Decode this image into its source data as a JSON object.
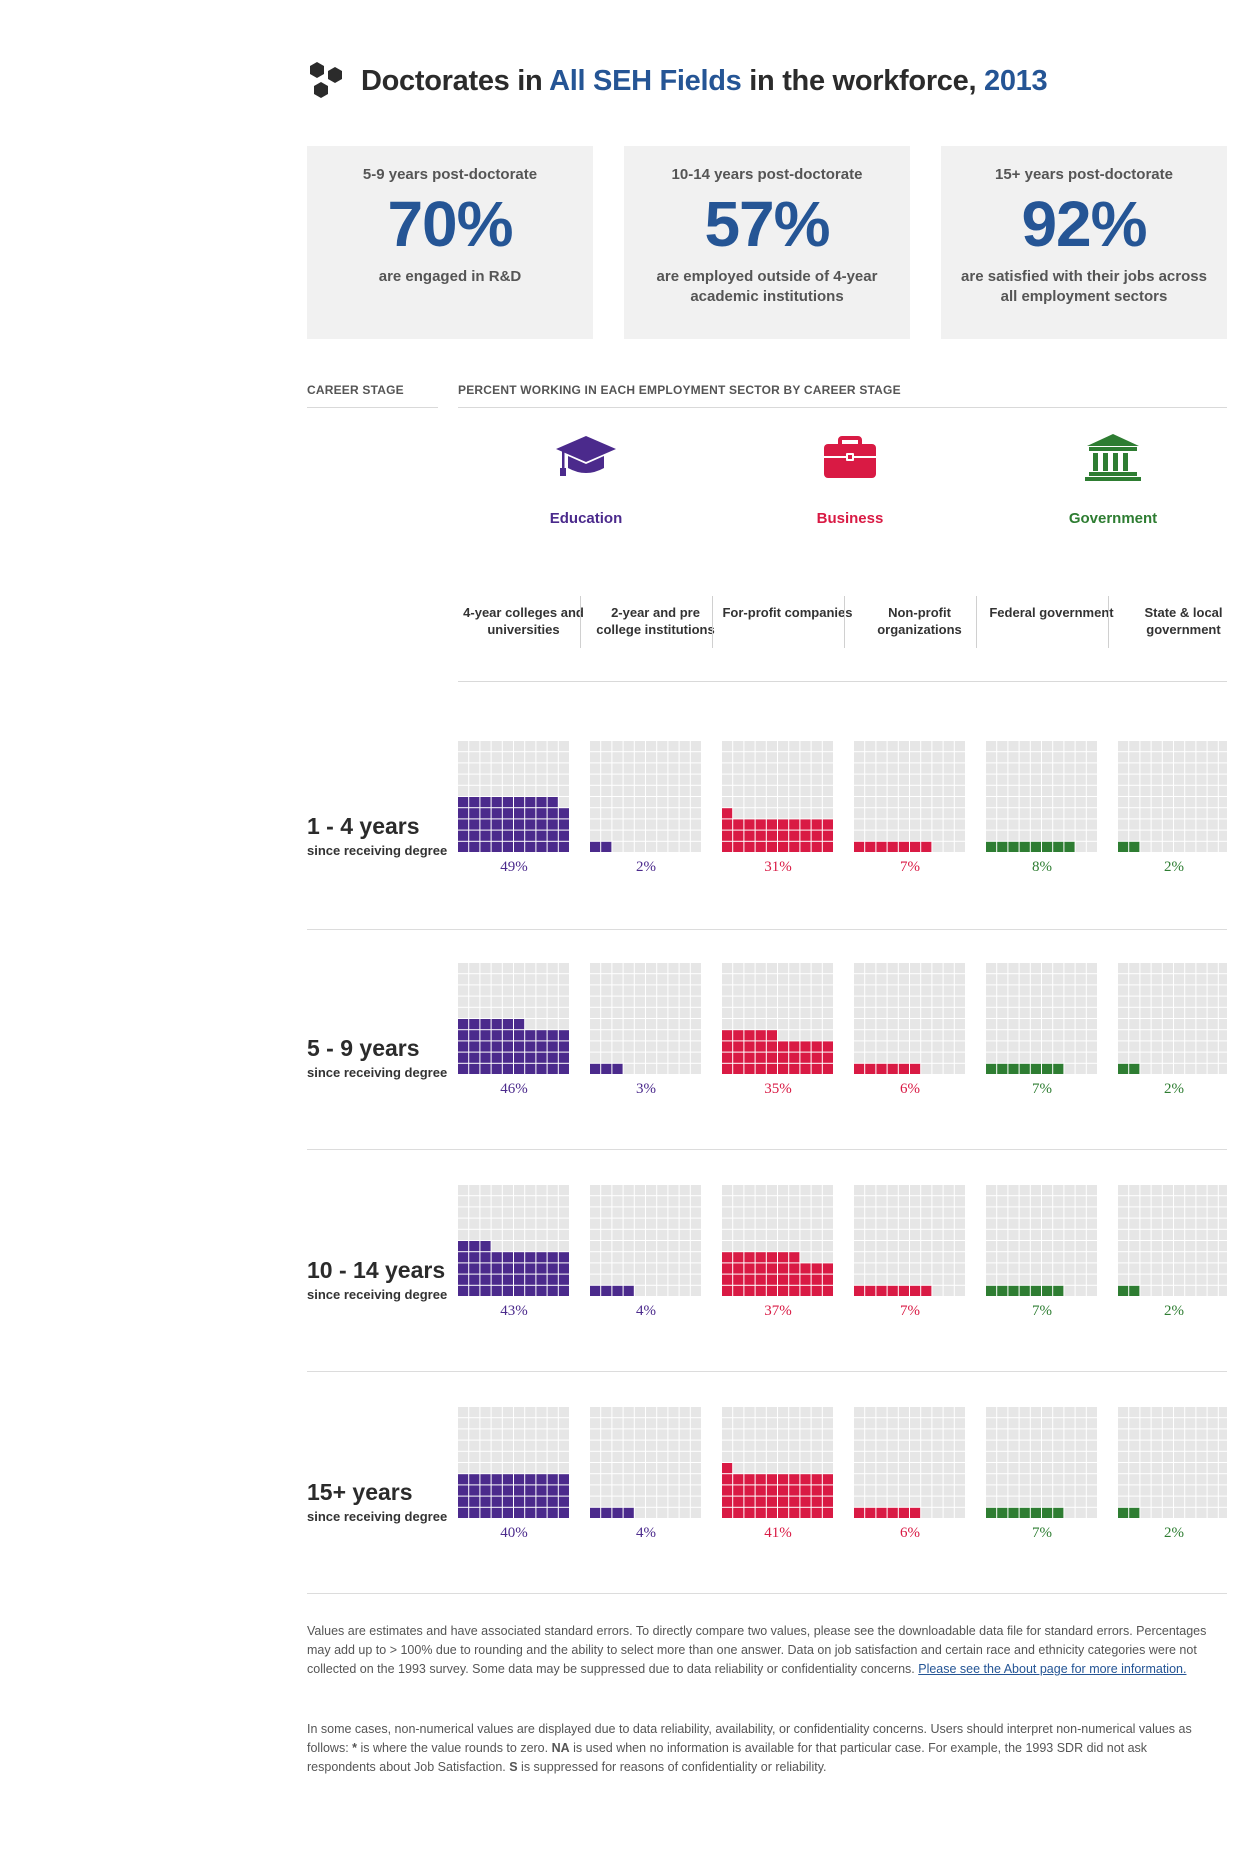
{
  "header": {
    "title_pre": "Doctorates in ",
    "title_field": "All SEH Fields",
    "title_mid": " in the workforce, ",
    "title_year": "2013"
  },
  "cards": [
    {
      "caption": "5-9 years post-doctorate",
      "value": "70%",
      "desc": "are engaged in R&D"
    },
    {
      "caption": "10-14 years post-doctorate",
      "value": "57%",
      "desc": "are employed outside of 4-year academic institutions"
    },
    {
      "caption": "15+ years post-doctorate",
      "value": "92%",
      "desc": "are satisfied with their jobs across all employment sectors"
    }
  ],
  "section_labels": {
    "career_stage": "CAREER STAGE",
    "percent_working": "PERCENT WORKING IN EACH EMPLOYMENT SECTOR BY CAREER STAGE"
  },
  "sectors": [
    {
      "label": "Education",
      "color": "#4b2a8c",
      "icon": "graduation-cap-icon"
    },
    {
      "label": "Business",
      "color": "#d91a44",
      "icon": "briefcase-icon"
    },
    {
      "label": "Government",
      "color": "#2e7d32",
      "icon": "government-building-icon"
    }
  ],
  "chart_data": {
    "type": "waffle",
    "categories": [
      "4-year colleges and universities",
      "2-year and pre college institutions",
      "For-profit companies",
      "Non-profit organizations",
      "Federal government",
      "State & local government"
    ],
    "category_sector": [
      "Education",
      "Education",
      "Business",
      "Business",
      "Government",
      "Government"
    ],
    "colors": [
      "#4b2a8c",
      "#4b2a8c",
      "#d91a44",
      "#d91a44",
      "#2e7d32",
      "#2e7d32"
    ],
    "empty_color": "#e6e6e6",
    "rows": [
      {
        "title": "1 - 4 years",
        "subtitle": "since receiving degree",
        "values": [
          49,
          2,
          31,
          7,
          8,
          2
        ]
      },
      {
        "title": "5 - 9 years",
        "subtitle": "since receiving degree",
        "values": [
          46,
          3,
          35,
          6,
          7,
          2
        ]
      },
      {
        "title": "10 - 14 years",
        "subtitle": "since receiving degree",
        "values": [
          43,
          4,
          37,
          7,
          7,
          2
        ]
      },
      {
        "title": "15+ years",
        "subtitle": "since receiving degree",
        "values": [
          40,
          4,
          41,
          6,
          7,
          2
        ]
      }
    ]
  },
  "notes": {
    "p1": "Values are estimates and have associated standard errors. To directly compare two values, please see the downloadable data file for standard errors. Percentages may add up to > 100% due to rounding and the ability to select more than one answer. Data on job satisfaction and certain race and ethnicity categories were not collected on the 1993 survey. Some data may be suppressed due to data reliability or confidentiality concerns. ",
    "p1_link": "Please see the About page for more information.",
    "p2a": "In some cases, non-numerical values are displayed due to data reliability, availability, or confidentiality concerns. Users should interpret non-numerical values as follows: ",
    "p2_star": "*",
    "p2b": " is where the value rounds to zero. ",
    "p2_na": "NA",
    "p2c": " is used when no information is available for that particular case. For example, the 1993 SDR did not ask respondents about Job Satisfaction. ",
    "p2_s": "S",
    "p2d": " is suppressed for reasons of confidentiality or reliability."
  }
}
